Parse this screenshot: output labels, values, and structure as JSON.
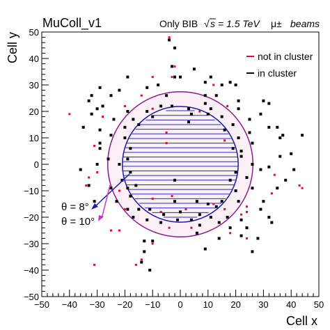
{
  "header": {
    "tag": "MuColl_v1",
    "info_prefix": "Only BIB",
    "sqrt_symbol": "√",
    "sqrt_arg": "s",
    "energy": "= 1.5 TeV",
    "particles": "μ±",
    "beams": "beams"
  },
  "chart_data": {
    "type": "scatter",
    "xlabel": "Cell x",
    "ylabel": "Cell y",
    "xlim": [
      -50,
      50
    ],
    "ylim": [
      -50,
      50
    ],
    "xticks": [
      -50,
      -40,
      -30,
      -20,
      -10,
      0,
      10,
      20,
      30,
      40,
      50
    ],
    "yticks": [
      -50,
      -40,
      -30,
      -20,
      -10,
      0,
      10,
      20,
      30,
      40,
      50
    ],
    "grid": false,
    "legend_position": "top-right",
    "colors": {
      "in_cluster": "#000000",
      "not_in_cluster": "#e8003a",
      "theta8": "#1a1aa8",
      "theta10": "#8b1a8b",
      "hatch": "#2a2ab8"
    },
    "series": [
      {
        "name": "not in cluster",
        "points": [
          [
            -4,
            47
          ],
          [
            -5,
            8
          ],
          [
            -4,
            48
          ],
          [
            -2,
            37
          ],
          [
            -3,
            33
          ],
          [
            12,
            30
          ],
          [
            -5,
            12
          ],
          [
            -40,
            19
          ],
          [
            -28,
            18
          ],
          [
            -31,
            7
          ],
          [
            -14,
            26
          ],
          [
            -20,
            22
          ],
          [
            -10,
            21
          ],
          [
            7,
            20
          ],
          [
            17,
            22
          ],
          [
            -31,
            -38
          ],
          [
            -22,
            -10
          ],
          [
            -33,
            -5
          ],
          [
            -34,
            -8
          ],
          [
            -22,
            -25
          ],
          [
            -10,
            -30
          ],
          [
            4,
            -24
          ],
          [
            16,
            -17
          ],
          [
            12,
            -15
          ],
          [
            -10,
            -13
          ],
          [
            22,
            -19
          ],
          [
            24,
            -18
          ],
          [
            29,
            -17
          ],
          [
            33,
            -11
          ],
          [
            24,
            -16
          ],
          [
            -20,
            -17
          ],
          [
            -14,
            -36
          ],
          [
            -16,
            -38
          ],
          [
            -3,
            -12
          ],
          [
            -7,
            -18
          ],
          [
            2,
            -17
          ],
          [
            -30,
            -3
          ],
          [
            18,
            -26
          ],
          [
            24,
            -28
          ],
          [
            -25,
            -25
          ],
          [
            34,
            -4
          ],
          [
            -4,
            -24
          ],
          [
            -2,
            -6
          ],
          [
            16,
            9
          ],
          [
            43,
            -8
          ],
          [
            44,
            -9
          ],
          [
            -10,
            33
          ]
        ]
      },
      {
        "name": "in cluster",
        "points": [
          [
            -4,
            47
          ],
          [
            -3,
            37
          ],
          [
            -2,
            33
          ],
          [
            0,
            33
          ],
          [
            5,
            36
          ],
          [
            9,
            31
          ],
          [
            11,
            33
          ],
          [
            9,
            26
          ],
          [
            13,
            26
          ],
          [
            15,
            30
          ],
          [
            18,
            31
          ],
          [
            20,
            30
          ],
          [
            21,
            21
          ],
          [
            -5,
            26
          ],
          [
            -8,
            30
          ],
          [
            -12,
            29
          ],
          [
            -19,
            33
          ],
          [
            -22,
            28
          ],
          [
            -25,
            26
          ],
          [
            -29,
            29
          ],
          [
            -32,
            26
          ],
          [
            -28,
            22
          ],
          [
            -32,
            19
          ],
          [
            -35,
            14
          ],
          [
            -29,
            13
          ],
          [
            -29,
            8
          ],
          [
            -29,
            6
          ],
          [
            -25,
            11
          ],
          [
            -20,
            14
          ],
          [
            -24,
            17
          ],
          [
            -19,
            20
          ],
          [
            -26,
            2
          ],
          [
            -30,
            0
          ],
          [
            -36,
            -2
          ],
          [
            -33,
            -8
          ],
          [
            -31,
            -14
          ],
          [
            -23,
            -14
          ],
          [
            -19,
            -17
          ],
          [
            -17,
            -20
          ],
          [
            -11,
            -17
          ],
          [
            -25,
            -9
          ],
          [
            -19,
            -9
          ],
          [
            -21,
            -6
          ],
          [
            -22,
            0
          ],
          [
            -10,
            -29
          ],
          [
            -13,
            -33
          ],
          [
            -14,
            -37
          ],
          [
            -11,
            -40
          ],
          [
            6,
            -26
          ],
          [
            7,
            -23
          ],
          [
            4,
            -21
          ],
          [
            0,
            -18
          ],
          [
            -2,
            -14
          ],
          [
            6,
            -14
          ],
          [
            10,
            -15
          ],
          [
            13,
            -16
          ],
          [
            14,
            -22
          ],
          [
            18,
            -24
          ],
          [
            17,
            -20
          ],
          [
            21,
            -14
          ],
          [
            20,
            -10
          ],
          [
            22,
            -21
          ],
          [
            29,
            -17
          ],
          [
            32,
            -20
          ],
          [
            24,
            -24
          ],
          [
            22,
            -27
          ],
          [
            30,
            -14
          ],
          [
            35,
            -9
          ],
          [
            38,
            -6
          ],
          [
            32,
            -1
          ],
          [
            36,
            3
          ],
          [
            41,
            -2
          ],
          [
            40,
            4
          ],
          [
            44,
            11
          ],
          [
            37,
            11
          ],
          [
            35,
            14
          ],
          [
            32,
            14
          ],
          [
            30,
            24
          ],
          [
            25,
            17
          ],
          [
            25,
            12
          ],
          [
            26,
            8
          ],
          [
            22,
            5
          ],
          [
            26,
            0
          ],
          [
            24,
            -5
          ],
          [
            26,
            -9
          ],
          [
            29,
            -2
          ],
          [
            21,
            24
          ],
          [
            29,
            19
          ],
          [
            -13,
            -29
          ],
          [
            9,
            -32
          ],
          [
            14,
            -28
          ],
          [
            26,
            -33
          ],
          [
            28,
            -28
          ],
          [
            33,
            -22
          ],
          [
            -2,
            -6
          ],
          [
            3,
            16
          ],
          [
            9,
            23
          ],
          [
            -7,
            22
          ],
          [
            -12,
            20
          ],
          [
            -17,
            17
          ],
          [
            -20,
            10
          ],
          [
            -18,
            -3
          ],
          [
            -18,
            -12
          ],
          [
            -15,
            -17
          ],
          [
            -12,
            -21
          ],
          [
            -7,
            -22
          ],
          [
            -1,
            -21
          ],
          [
            11,
            -20
          ],
          [
            20,
            -3
          ],
          [
            22,
            3
          ],
          [
            21,
            10
          ],
          [
            19,
            15
          ],
          [
            15,
            18
          ],
          [
            11,
            21
          ],
          [
            3,
            21
          ],
          [
            -3,
            22
          ],
          [
            -18,
            6
          ],
          [
            -2,
            44
          ],
          [
            32,
            23
          ],
          [
            36,
            10
          ],
          [
            -33,
            24
          ],
          [
            -30,
            21
          ],
          [
            -15,
            15
          ],
          [
            -10,
            18
          ],
          [
            4,
            19
          ],
          [
            10,
            19
          ],
          [
            16,
            13
          ],
          [
            19,
            6
          ],
          [
            18,
            -6
          ],
          [
            15,
            -14
          ],
          [
            7,
            -19
          ],
          [
            -6,
            -19
          ],
          [
            -16,
            -8
          ],
          [
            -19,
            2
          ]
        ]
      }
    ],
    "circles": [
      {
        "label": "θ = 8°",
        "radius": 20.9
      },
      {
        "label": "θ = 10°",
        "radius": 26.2
      }
    ],
    "annotations": [
      "θ = 8°",
      "θ = 10°"
    ]
  }
}
